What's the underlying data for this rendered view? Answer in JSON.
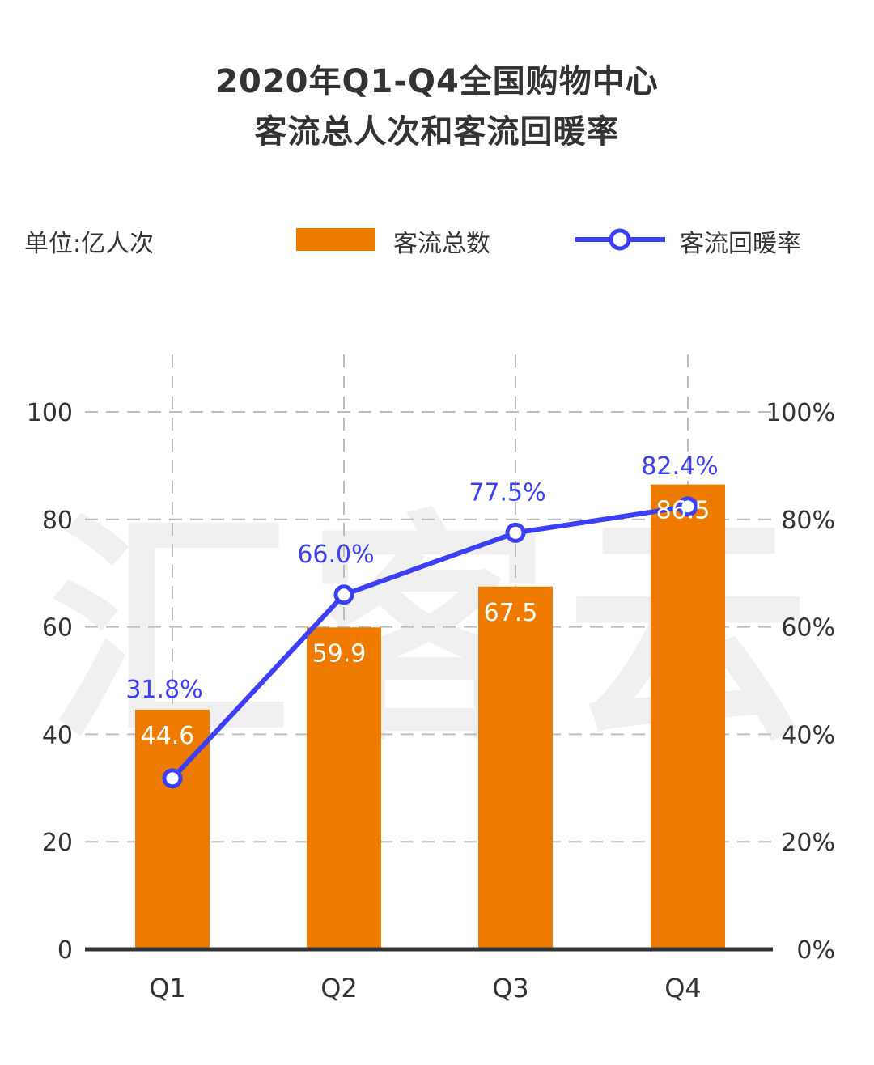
{
  "chart_data": {
    "type": "bar",
    "title_lines": [
      "2020年Q1-Q4全国购物中心",
      "客流总人次和客流回暖率"
    ],
    "unit_label": "单位:亿人次",
    "watermark": "汇客云",
    "categories": [
      "Q1",
      "Q2",
      "Q3",
      "Q4"
    ],
    "series": [
      {
        "name": "客流总数",
        "type": "bar",
        "axis": "left",
        "values": [
          44.6,
          59.9,
          67.5,
          86.5
        ],
        "labels": [
          "44.6",
          "59.9",
          "67.5",
          "86.5"
        ],
        "color": "#ee7b00"
      },
      {
        "name": "客流回暖率",
        "type": "line",
        "axis": "right",
        "values": [
          31.8,
          66.0,
          77.5,
          82.4
        ],
        "labels": [
          "31.8%",
          "66.0%",
          "77.5%",
          "82.4%"
        ],
        "color": "#3b3ff5"
      }
    ],
    "y_left": {
      "ylim": [
        0,
        100
      ],
      "ticks": [
        "0",
        "20",
        "40",
        "60",
        "80",
        "100"
      ]
    },
    "y_right": {
      "ylim": [
        0,
        100
      ],
      "ticks": [
        "0%",
        "20%",
        "40%",
        "60%",
        "80%",
        "100%"
      ]
    },
    "grid": true,
    "legend_position": "top"
  }
}
